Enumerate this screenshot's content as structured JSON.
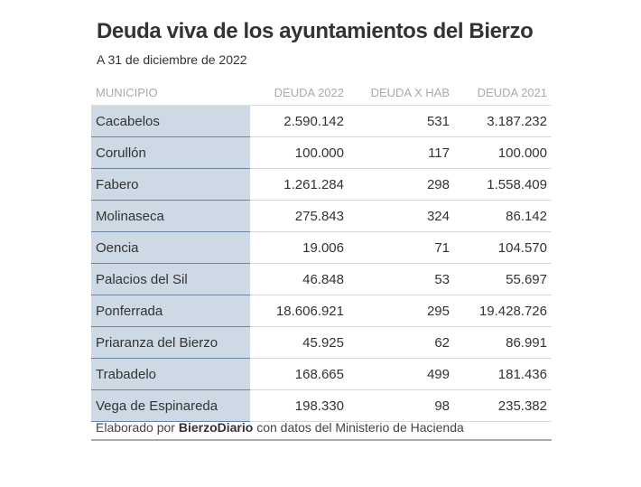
{
  "chart_data": {
    "type": "table",
    "title": "Deuda viva de los ayuntamientos del Bierzo",
    "subtitle": "A 31 de diciembre de 2022",
    "columns": [
      "MUNICIPIO",
      "DEUDA 2022",
      "DEUDA X HAB",
      "DEUDA 2021"
    ],
    "rows": [
      [
        "Cacabelos",
        "2.590.142",
        "531",
        "3.187.232"
      ],
      [
        "Corullón",
        "100.000",
        "117",
        "100.000"
      ],
      [
        "Fabero",
        "1.261.284",
        "298",
        "1.558.409"
      ],
      [
        "Molinaseca",
        "275.843",
        "324",
        "86.142"
      ],
      [
        "Oencia",
        "19.006",
        "71",
        "104.570"
      ],
      [
        "Palacios del Sil",
        "46.848",
        "53",
        "55.697"
      ],
      [
        "Ponferrada",
        "18.606.921",
        "295",
        "19.428.726"
      ],
      [
        "Priaranza del Bierzo",
        "45.925",
        "62",
        "86.991"
      ],
      [
        "Trabadelo",
        "168.665",
        "499",
        "181.436"
      ],
      [
        "Vega de Espinareda",
        "198.330",
        "98",
        "235.382"
      ]
    ],
    "source": {
      "prefix": "Elaborado por",
      "brand": "BierzoDiario",
      "suffix": "con datos del Ministerio de Hacienda"
    }
  },
  "colors": {
    "first_column_fill": "#cdd9e5",
    "first_column_rule": "#6b86a3",
    "header_text": "#aaaaaa",
    "body_text": "#333333"
  }
}
